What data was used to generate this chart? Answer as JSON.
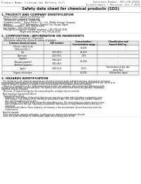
{
  "doc_title": "Safety data sheet for chemical products (SDS)",
  "header_left": "Product Name: Lithium Ion Battery Cell",
  "header_right_line1": "Substance Number: SDS-LIB-00010",
  "header_right_line2": "Establishment / Revision: Dec.7.2010",
  "bg_color": "#f0ede8",
  "content_bg": "#ffffff",
  "section1_title": "1. PRODUCT AND COMPANY IDENTIFICATION",
  "section1_lines": [
    "· Product name: Lithium Ion Battery Cell",
    "· Product code: Cylindrical-type cell",
    "   SV1865S0, SV18650L, SV18650A",
    "· Company name:    Sanyo Electric Co., Ltd., Mobile Energy Company",
    "· Address:          2001 Kamomatsu, Sumoto City, Hyogo, Japan",
    "· Telephone number:  +81-799-26-4111",
    "· Fax number: +81-799-26-4121",
    "· Emergency telephone number (daytime): +81-799-26-3662",
    "                         (Night and holiday): +81-799-26-4101"
  ],
  "section2_title": "2. COMPOSITION / INFORMATION ON INGREDIENTS",
  "section2_lines": [
    "· Substance or preparation: Preparation",
    "· Information about the chemical nature of product:"
  ],
  "table_headers": [
    "Common chemical name",
    "CAS number",
    "Concentration /\nConcentration range",
    "Classification and\nhazard labeling"
  ],
  "table_rows": [
    [
      "Lithium cobalt oxide\n(LiMn₂Co(COO₂))",
      "-",
      "30-40%",
      "-"
    ],
    [
      "Iron",
      "7439-89-6",
      "15-25%",
      "-"
    ],
    [
      "Aluminum",
      "7429-90-5",
      "2-5%",
      "-"
    ],
    [
      "Graphite\n(Natural graphite)\n(Artificial graphite)",
      "7782-42-5\n7782-44-0",
      "10-20%",
      "-"
    ],
    [
      "Copper",
      "7440-50-8",
      "5-15%",
      "Sensitization of the skin\ngroup No.2"
    ],
    [
      "Organic electrolyte",
      "-",
      "10-20%",
      "Inflammable liquid"
    ]
  ],
  "section3_title": "3. HAZARDS IDENTIFICATION",
  "section3_lines": [
    "   For the battery cell, chemical materials are stored in a hermetically sealed metal case, designed to withstand",
    "temperatures generated by electrode-electrochemical during normal use. As a result, during normal use, there is no",
    "physical danger of ignition or expiration and thermal danger of hazardous materials leakage.",
    "   However, if exposed to a fire, added mechanical shocks, decomposes, when electrolyte within may leak,",
    "the gas released from can be operated. The battery cell case will be breached at fire-portions. Hazardous",
    "materials may be released.",
    "   Moreover, if heated strongly by the surrounding fire, acid gas may be emitted.",
    "",
    "· Most important hazard and effects:",
    "   Human health effects:",
    "      Inhalation: The release of the electrolyte has an anesthesia action and stimulates a respiratory tract.",
    "      Skin contact: The release of the electrolyte stimulates a skin. The electrolyte skin contact causes a",
    "      sore and stimulation on the skin.",
    "      Eye contact: The release of the electrolyte stimulates eyes. The electrolyte eye contact causes a sore",
    "      and stimulation on the eye. Especially, a substance that causes a strong inflammation of the eye is",
    "      contained.",
    "      Environmental effects: Since a battery cell remains in the environment, do not throw out it into the",
    "      environment.",
    "",
    "· Specific hazards:",
    "   If the electrolyte contacts with water, it will generate detrimental hydrogen fluoride.",
    "   Since the used electrolyte is inflammable liquid, do not bring close to fire."
  ]
}
